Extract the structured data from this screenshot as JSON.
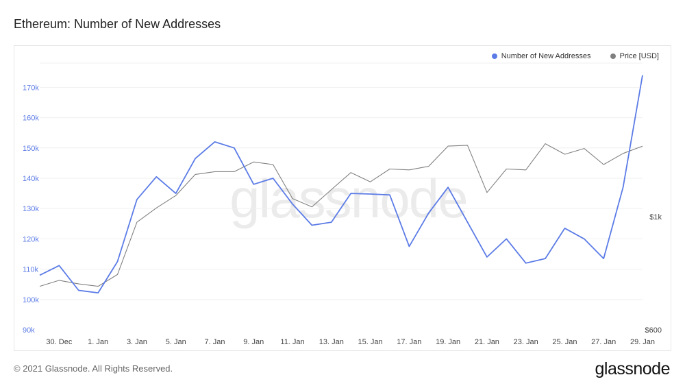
{
  "title": "Ethereum: Number of New Addresses",
  "footer": "© 2021 Glassnode. All Rights Reserved.",
  "brand": "glassnode",
  "watermark": "glassnode",
  "colors": {
    "addresses": "#5b7be6",
    "price": "#808080",
    "grid": "#efefef"
  },
  "legend": [
    {
      "label": "Number of New Addresses",
      "color": "#5b7be6"
    },
    {
      "label": "Price [USD]",
      "color": "#808080"
    }
  ],
  "chart_data": {
    "type": "line",
    "x": [
      "2020-12-29",
      "2020-12-30",
      "2020-12-31",
      "2021-01-01",
      "2021-01-02",
      "2021-01-03",
      "2021-01-04",
      "2021-01-05",
      "2021-01-06",
      "2021-01-07",
      "2021-01-08",
      "2021-01-09",
      "2021-01-10",
      "2021-01-11",
      "2021-01-12",
      "2021-01-13",
      "2021-01-14",
      "2021-01-15",
      "2021-01-16",
      "2021-01-17",
      "2021-01-18",
      "2021-01-19",
      "2021-01-20",
      "2021-01-21",
      "2021-01-22",
      "2021-01-23",
      "2021-01-24",
      "2021-01-25",
      "2021-01-26",
      "2021-01-27",
      "2021-01-28",
      "2021-01-29"
    ],
    "x_tick_labels": [
      "30. Dec",
      "1. Jan",
      "3. Jan",
      "5. Jan",
      "7. Jan",
      "9. Jan",
      "11. Jan",
      "13. Jan",
      "15. Jan",
      "17. Jan",
      "19. Jan",
      "21. Jan",
      "23. Jan",
      "25. Jan",
      "27. Jan",
      "29. Jan"
    ],
    "y_left": {
      "ticks": [
        "90k",
        "100k",
        "110k",
        "120k",
        "130k",
        "140k",
        "150k",
        "160k",
        "170k"
      ],
      "lim": [
        90000,
        178000
      ],
      "color": "#5b7be6"
    },
    "y_right": {
      "ticks": [
        "$600",
        "$1k"
      ],
      "scale": "log",
      "lim": [
        600,
        2000
      ]
    },
    "series": [
      {
        "name": "Number of New Addresses",
        "axis": "left",
        "color": "#5b7be6",
        "values": [
          108000,
          111200,
          103000,
          102200,
          112500,
          133000,
          140500,
          135000,
          146500,
          152000,
          150000,
          138000,
          140000,
          131500,
          124500,
          125500,
          135000,
          134800,
          134500,
          117500,
          128500,
          137000,
          125500,
          114000,
          120000,
          112000,
          113500,
          123500,
          120000,
          113500,
          137000,
          174000
        ]
      },
      {
        "name": "Price [USD]",
        "axis": "right",
        "color": "#808080",
        "values": [
          730,
          750,
          738,
          730,
          770,
          975,
          1040,
          1100,
          1210,
          1225,
          1225,
          1280,
          1265,
          1085,
          1045,
          1130,
          1220,
          1170,
          1240,
          1235,
          1255,
          1375,
          1380,
          1115,
          1240,
          1235,
          1390,
          1325,
          1360,
          1265,
          1330,
          1375
        ]
      }
    ],
    "grid": true,
    "legend_position": "top-right"
  }
}
